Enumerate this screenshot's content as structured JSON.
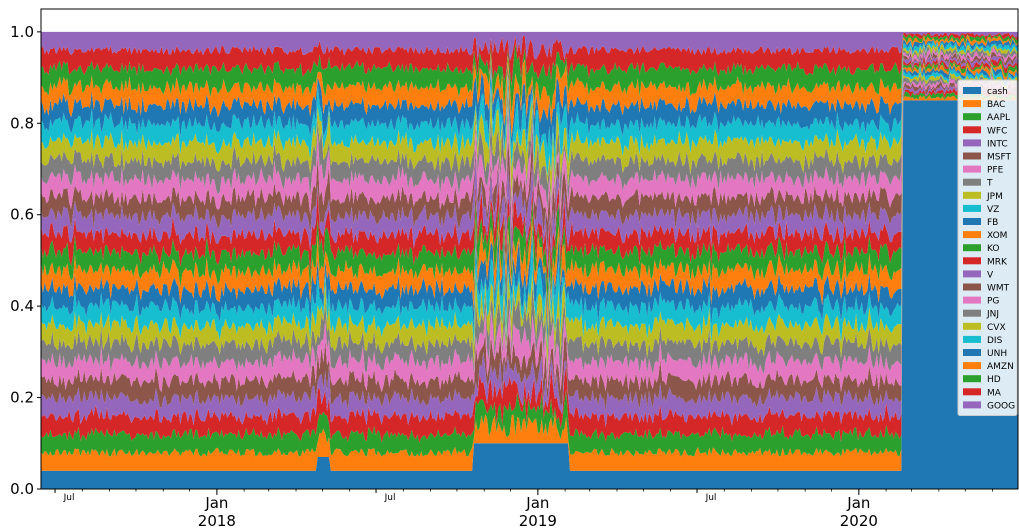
{
  "chart_data": {
    "type": "area",
    "stacked": true,
    "normalized": true,
    "x_range": [
      "2017-06-15",
      "2020-06-30"
    ],
    "ylim": [
      0.0,
      1.05
    ],
    "y_ticks": [
      {
        "value": 0.0,
        "label": "0.0"
      },
      {
        "value": 0.2,
        "label": "0.2"
      },
      {
        "value": 0.4,
        "label": "0.4"
      },
      {
        "value": 0.6,
        "label": "0.6"
      },
      {
        "value": 0.8,
        "label": "0.8"
      },
      {
        "value": 1.0,
        "label": "1.0"
      }
    ],
    "x_major_ticks": [
      {
        "date": "2018-01-01",
        "label": "Jan",
        "year": "2018"
      },
      {
        "date": "2019-01-01",
        "label": "Jan",
        "year": "2019"
      },
      {
        "date": "2020-01-01",
        "label": "Jan",
        "year": "2020"
      }
    ],
    "x_minor_ticks": [
      {
        "date": "2017-07-01",
        "label": "Jul"
      },
      {
        "date": "2018-07-01",
        "label": "Jul"
      },
      {
        "date": "2019-07-01",
        "label": "Jul"
      }
    ],
    "grid": false,
    "legend_position": "right",
    "series": [
      {
        "name": "cash",
        "color": "#1f77b4"
      },
      {
        "name": "BAC",
        "color": "#ff7f0e"
      },
      {
        "name": "AAPL",
        "color": "#2ca02c"
      },
      {
        "name": "WFC",
        "color": "#d62728"
      },
      {
        "name": "INTC",
        "color": "#9467bd"
      },
      {
        "name": "MSFT",
        "color": "#8c564b"
      },
      {
        "name": "PFE",
        "color": "#e377c2"
      },
      {
        "name": "T",
        "color": "#7f7f7f"
      },
      {
        "name": "JPM",
        "color": "#bcbd22"
      },
      {
        "name": "VZ",
        "color": "#17becf"
      },
      {
        "name": "FB",
        "color": "#1f77b4"
      },
      {
        "name": "XOM",
        "color": "#ff7f0e"
      },
      {
        "name": "KO",
        "color": "#2ca02c"
      },
      {
        "name": "MRK",
        "color": "#d62728"
      },
      {
        "name": "V",
        "color": "#9467bd"
      },
      {
        "name": "WMT",
        "color": "#8c564b"
      },
      {
        "name": "PG",
        "color": "#e377c2"
      },
      {
        "name": "JNJ",
        "color": "#7f7f7f"
      },
      {
        "name": "CVX",
        "color": "#bcbd22"
      },
      {
        "name": "DIS",
        "color": "#17becf"
      },
      {
        "name": "UNH",
        "color": "#1f77b4"
      },
      {
        "name": "AMZN",
        "color": "#ff7f0e"
      },
      {
        "name": "HD",
        "color": "#2ca02c"
      },
      {
        "name": "MA",
        "color": "#d62728"
      },
      {
        "name": "GOOG",
        "color": "#9467bd"
      }
    ],
    "cash_weight_by_period": [
      {
        "from": "2017-06-15",
        "to": "2017-07-15",
        "cash": 0.04
      },
      {
        "from": "2017-07-15",
        "to": "2018-04-25",
        "cash": 0.04
      },
      {
        "from": "2018-04-25",
        "to": "2018-05-10",
        "cash": 0.07
      },
      {
        "from": "2018-05-10",
        "to": "2018-10-20",
        "cash": 0.04
      },
      {
        "from": "2018-10-20",
        "to": "2019-02-05",
        "cash": 0.1
      },
      {
        "from": "2019-02-05",
        "to": "2020-02-20",
        "cash": 0.04
      },
      {
        "from": "2020-02-20",
        "to": "2020-06-30",
        "cash": 0.85
      }
    ]
  }
}
